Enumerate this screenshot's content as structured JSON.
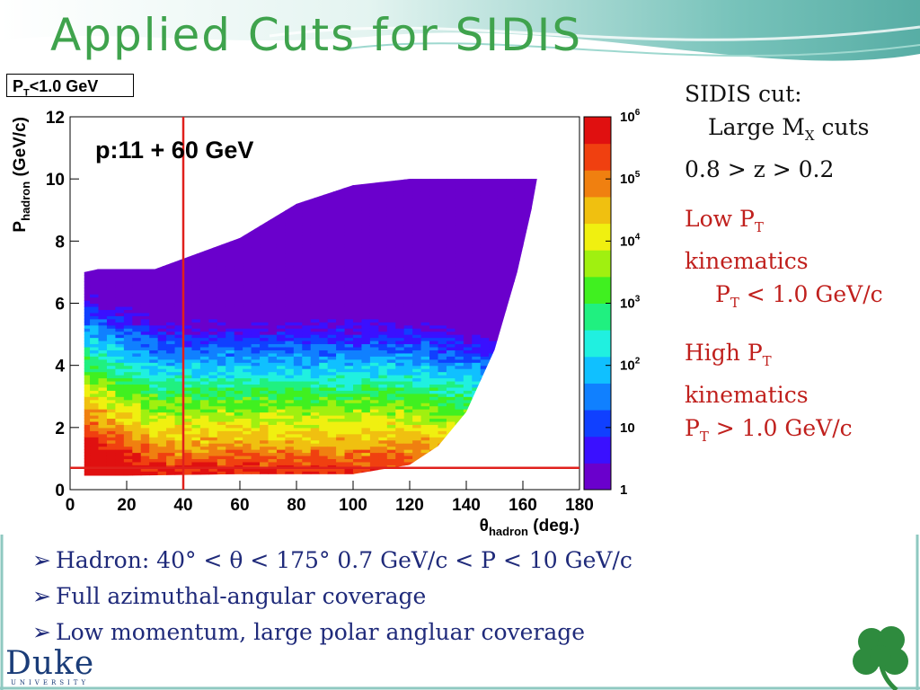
{
  "slide": {
    "title": "Applied Cuts for SIDIS",
    "pt_box": {
      "main": "P",
      "sub": "T",
      "rest": "<1.0 GeV"
    },
    "plot_label": "p:11 + 60 GeV",
    "colors": {
      "title": "#3fa34d",
      "red_text": "#c0201d",
      "bullet_text": "#1f2a7a",
      "cut_line": "#e0201c"
    }
  },
  "right_panel": {
    "sidis_cut": "SIDIS cut:",
    "large_mx_a": "Large M",
    "large_mx_sub": "X",
    "large_mx_b": " cuts",
    "z_range": "0.8 > z > 0.2",
    "low_pt_a": "Low P",
    "low_pt_sub": "T",
    "low_kin": "kinematics",
    "low_cut_a": "P",
    "low_cut_sub": "T",
    "low_cut_b": " < 1.0 GeV/c",
    "high_pt_a": "High P",
    "high_pt_sub": "T",
    "high_kin": "kinematics",
    "high_cut_a": "P",
    "high_cut_sub": "T",
    "high_cut_b": " > 1.0 GeV/c"
  },
  "bullets": [
    "Hadron:    40°  < θ < 175°   0.7 GeV/c < P < 10 GeV/c",
    "Full azimuthal-angular coverage",
    "Low momentum, large polar angluar coverage"
  ],
  "logo": {
    "name": "Duke",
    "university": "UNIVERSITY"
  },
  "chart_data": {
    "type": "heatmap",
    "xlabel": "θhadron (deg.)",
    "ylabel": "Phadron (GeV/c)",
    "xlim": [
      0,
      180
    ],
    "ylim": [
      0,
      12
    ],
    "x_ticks": [
      "0",
      "20",
      "40",
      "60",
      "80",
      "100",
      "120",
      "140",
      "160",
      "180"
    ],
    "y_ticks": [
      "0",
      "2",
      "4",
      "6",
      "8",
      "10",
      "12"
    ],
    "z_scale": "log",
    "z_ticks": [
      "1",
      "10",
      "10^2",
      "10^3",
      "10^4",
      "10^5",
      "10^6"
    ],
    "cut_lines": [
      {
        "orientation": "vertical",
        "x": 40
      },
      {
        "orientation": "horizontal",
        "y": 0.7
      }
    ],
    "palette": [
      "#6a00cc",
      "#3a10ff",
      "#1040ff",
      "#1080ff",
      "#10c0ff",
      "#20f0e0",
      "#20f080",
      "#40f020",
      "#a0f010",
      "#f0f010",
      "#f0c010",
      "#f08010",
      "#f04010",
      "#e01010"
    ]
  }
}
